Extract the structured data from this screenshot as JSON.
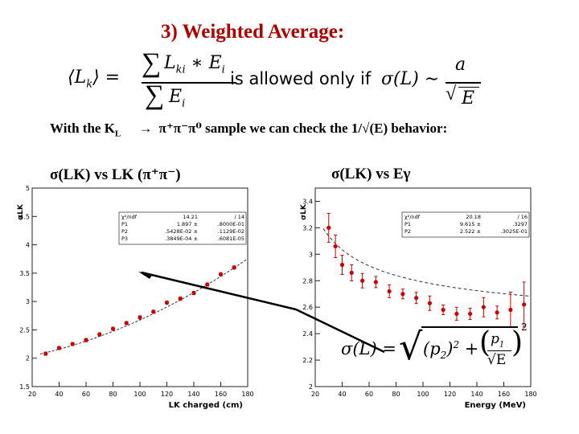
{
  "slide": {
    "title": "3) Weighted Average:",
    "formula_text": "is allowed only if",
    "sentence_pre": "With the K",
    "sentence_sub": "L",
    "sentence_arrow": "→",
    "sentence_decay": "π⁺π⁻π⁰",
    "sentence_post": "sample we can check the 1/√(E) behavior:",
    "left_label": "σ(LK) vs LK (π⁺π⁻)",
    "right_label": "σ(LK) vs Eγ"
  },
  "chart_data": [
    {
      "type": "scatter",
      "xlabel": "LK charged (cm)",
      "ylabel": "σLK",
      "xlim": [
        20,
        180
      ],
      "ylim": [
        1.5,
        5
      ],
      "x_ticks": [
        "20",
        "40",
        "60",
        "80",
        "100",
        "120",
        "140",
        "160",
        "180"
      ],
      "y_ticks": [
        "1.5",
        "2",
        "2.5",
        "3",
        "3.5",
        "4",
        "4.5",
        "5"
      ],
      "stats": [
        [
          "χ²/ndf",
          "14.21",
          "/ 14"
        ],
        [
          "P1",
          "1.897 ±",
          ".8000E-01"
        ],
        [
          "P2",
          ".5428E-02 ±",
          ".1129E-02"
        ],
        [
          "P3",
          ".3849E-04 ±",
          ".6081E-05"
        ]
      ],
      "x": [
        30,
        40,
        50,
        60,
        70,
        80,
        90,
        100,
        110,
        120,
        130,
        140,
        150,
        160,
        170
      ],
      "y": [
        2.08,
        2.18,
        2.25,
        2.32,
        2.42,
        2.52,
        2.62,
        2.72,
        2.82,
        2.98,
        3.05,
        3.15,
        3.3,
        3.48,
        3.6
      ]
    },
    {
      "type": "scatter",
      "xlabel": "Energy (MeV)",
      "ylabel": "σLK",
      "xlim": [
        20,
        180
      ],
      "ylim": [
        2,
        3.5
      ],
      "x_ticks": [
        "20",
        "40",
        "60",
        "80",
        "100",
        "120",
        "140",
        "160",
        "180"
      ],
      "y_ticks": [
        "2",
        "2.2",
        "2.4",
        "2.6",
        "2.8",
        "3",
        "3.2",
        "3.4"
      ],
      "stats": [
        [
          "χ²/ndf",
          "20.18",
          "/ 16"
        ],
        [
          "P1",
          "9.615 ±",
          ".3297"
        ],
        [
          "P2",
          "2.522 ±",
          ".3025E-01"
        ]
      ],
      "x": [
        30,
        35,
        40,
        47,
        55,
        65,
        75,
        85,
        95,
        105,
        115,
        125,
        135,
        145,
        155,
        165,
        175
      ],
      "y": [
        3.2,
        3.06,
        2.92,
        2.86,
        2.8,
        2.79,
        2.72,
        2.7,
        2.67,
        2.63,
        2.58,
        2.55,
        2.55,
        2.6,
        2.56,
        2.58,
        2.62
      ]
    }
  ]
}
